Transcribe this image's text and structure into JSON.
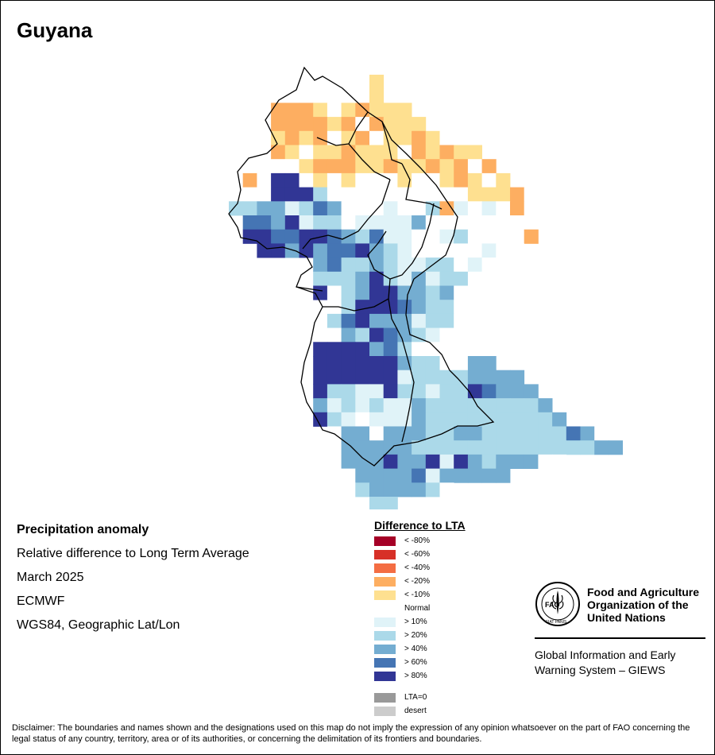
{
  "map": {
    "title": "Guyana"
  },
  "info": {
    "variable": "Precipitation anomaly",
    "description": "Relative difference to Long Term Average",
    "period": "March 2025",
    "source": "ECMWF",
    "projection": "WGS84, Geographic Lat/Lon"
  },
  "legend": {
    "title": "Difference to LTA",
    "items": [
      {
        "label": "< -80%",
        "color": "#a50026"
      },
      {
        "label": "< -60%",
        "color": "#d73027"
      },
      {
        "label": "< -40%",
        "color": "#f46d43"
      },
      {
        "label": "< -20%",
        "color": "#fdae61"
      },
      {
        "label": "< -10%",
        "color": "#fee090"
      },
      {
        "label": "Normal",
        "color": "#ffffff"
      },
      {
        "label": "> 10%",
        "color": "#e0f3f8"
      },
      {
        "label": "> 20%",
        "color": "#abd9e9"
      },
      {
        "label": "> 40%",
        "color": "#74add1"
      },
      {
        "label": "> 60%",
        "color": "#4575b4"
      },
      {
        "label": "> 80%",
        "color": "#313695"
      }
    ],
    "extra": [
      {
        "label": "LTA=0",
        "color": "#999999"
      },
      {
        "label": "desert",
        "color": "#cccccc"
      }
    ]
  },
  "org": {
    "logo_text": "FAO",
    "logo_motto": "FIAT PANIS",
    "name_line1": "Food and Agriculture",
    "name_line2": "Organization of the",
    "name_line3": "United Nations",
    "giews_line1": "Global Information and Early",
    "giews_line2": "Warning System – GIEWS"
  },
  "disclaimer": "Disclaimer: The boundaries and names shown and the designations used on this map do not imply the expression of any opinion whatsoever on the part of FAO concerning the legal status of any country, territory, area or of its authorities, or concerning the delimitation of its frontiers and boundaries."
}
